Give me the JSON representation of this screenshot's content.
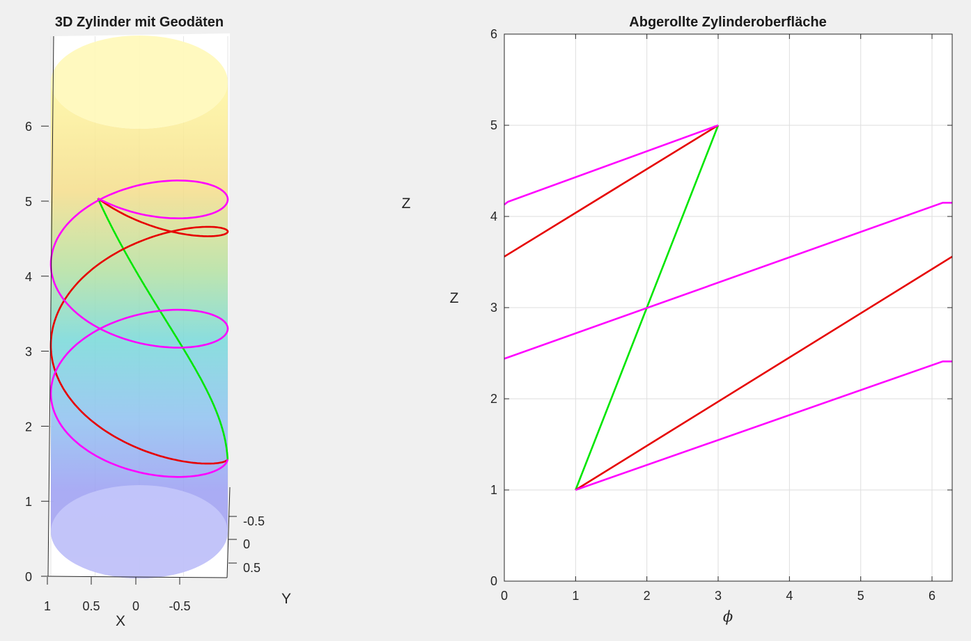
{
  "chart_data": [
    {
      "type": "line",
      "title": "3D Zylinder mit Geodäten",
      "xlabel": "X",
      "ylabel": "Y",
      "zlabel": "Z",
      "x_ticks": [
        "1",
        "0.5",
        "0",
        "-0.5"
      ],
      "y_ticks": [
        "-0.5",
        "0",
        "0.5"
      ],
      "z_ticks": [
        "0",
        "1",
        "2",
        "3",
        "4",
        "5",
        "6"
      ],
      "zlim": [
        0,
        6
      ],
      "cylinder": {
        "radius": 1,
        "z_range": [
          0,
          6
        ],
        "colormap": "parula-like",
        "alpha": 0.5
      },
      "series": [
        {
          "color": "#00e600",
          "start": {
            "phi": 1,
            "z": 1
          },
          "end": {
            "phi": 3,
            "z": 5
          },
          "turns": 0
        },
        {
          "color": "#e60000",
          "start": {
            "phi": 1,
            "z": 1
          },
          "end": {
            "phi": 3,
            "z": 5
          },
          "turns": 1
        },
        {
          "color": "#ff00ff",
          "start": {
            "phi": 1,
            "z": 1
          },
          "end": {
            "phi": 3,
            "z": 5
          },
          "turns": 2
        }
      ],
      "grid": true
    },
    {
      "type": "line",
      "title": "Abgerollte Zylinderoberfläche",
      "xlabel": "ϕ",
      "ylabel": "Z",
      "xlim": [
        0,
        6.2832
      ],
      "ylim": [
        0,
        6
      ],
      "x_ticks": [
        0,
        1,
        2,
        3,
        4,
        5,
        6
      ],
      "y_ticks": [
        0,
        1,
        2,
        3,
        4,
        5,
        6
      ],
      "grid": true,
      "series": [
        {
          "color": "#00e600",
          "segments": [
            [
              [
                1,
                1
              ],
              [
                3,
                5
              ]
            ]
          ]
        },
        {
          "color": "#e60000",
          "segments": [
            [
              [
                1,
                1
              ],
              [
                6.2832,
                3.5596
              ]
            ],
            [
              [
                0,
                3.5596
              ],
              [
                3,
                5
              ]
            ]
          ]
        },
        {
          "color": "#ff00ff",
          "segments": [
            [
              [
                1,
                1
              ],
              [
                6.15,
                2.41
              ],
              [
                6.2832,
                2.41
              ]
            ],
            [
              [
                0,
                2.44
              ],
              [
                6.15,
                4.15
              ],
              [
                6.2832,
                4.15
              ]
            ],
            [
              [
                0,
                4.13
              ],
              [
                0.05,
                4.16
              ],
              [
                3,
                5
              ]
            ]
          ]
        }
      ]
    }
  ]
}
